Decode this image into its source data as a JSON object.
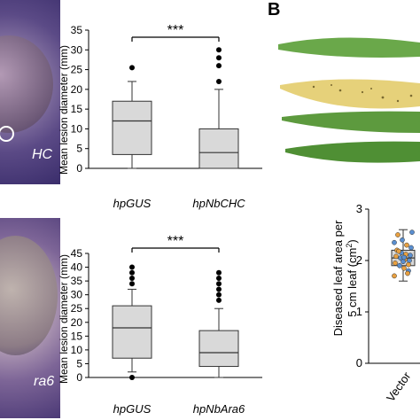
{
  "panel_b_letter": "B",
  "photos": {
    "top_label": "HC",
    "bottom_label": "ra6"
  },
  "chart_data": [
    {
      "type": "box",
      "ylabel": "Mean  lesion diameter  (mm)",
      "ylim": [
        0,
        35
      ],
      "yticks": [
        "0",
        "5",
        "10",
        "15",
        "20",
        "25",
        "30",
        "35"
      ],
      "categories": [
        "hpGUS",
        "hpNbCHC"
      ],
      "boxes": [
        {
          "min": 0,
          "q1": 3.5,
          "median": 12,
          "q3": 17,
          "max": 22,
          "outliers": [
            25.5
          ]
        },
        {
          "min": 0,
          "q1": 0,
          "median": 4,
          "q3": 10,
          "max": 20,
          "outliers": [
            22,
            26,
            28,
            30
          ]
        }
      ],
      "significance": "***"
    },
    {
      "type": "box",
      "ylabel": "Mean  lesion diameter  (mm)",
      "ylim": [
        0,
        45
      ],
      "yticks": [
        "0",
        "5",
        "10",
        "15",
        "20",
        "25",
        "30",
        "35",
        "40",
        "45"
      ],
      "categories": [
        "hpGUS",
        "hpNbAra6"
      ],
      "boxes": [
        {
          "min": 2,
          "q1": 7,
          "median": 18,
          "q3": 26,
          "max": 32,
          "outliers": [
            0,
            34,
            36,
            38,
            40
          ]
        },
        {
          "min": 0,
          "q1": 4,
          "median": 9,
          "q3": 17,
          "max": 25,
          "outliers": [
            28,
            30,
            32,
            34,
            36,
            38
          ]
        }
      ],
      "significance": "***"
    },
    {
      "type": "box",
      "ylabel_line1": "Diseased leaf area per",
      "ylabel_line2": "5 cm leaf (cm",
      "ylabel_sup": "2",
      "ylabel_close": ")",
      "ylim": [
        0,
        3
      ],
      "yticks": [
        "0",
        "1",
        "2",
        "3"
      ],
      "categories": [
        "Vector"
      ],
      "boxes": [
        {
          "min": 1.6,
          "q1": 1.9,
          "median": 2.05,
          "q3": 2.2,
          "max": 2.6
        }
      ]
    }
  ],
  "colors": {
    "box_fill": "#d9d9d9",
    "leaf_green": "#5a9a3c",
    "leaf_yellow": "#e8d27a",
    "dot_orange": "#e8a040",
    "dot_blue": "#5a8fd0"
  }
}
